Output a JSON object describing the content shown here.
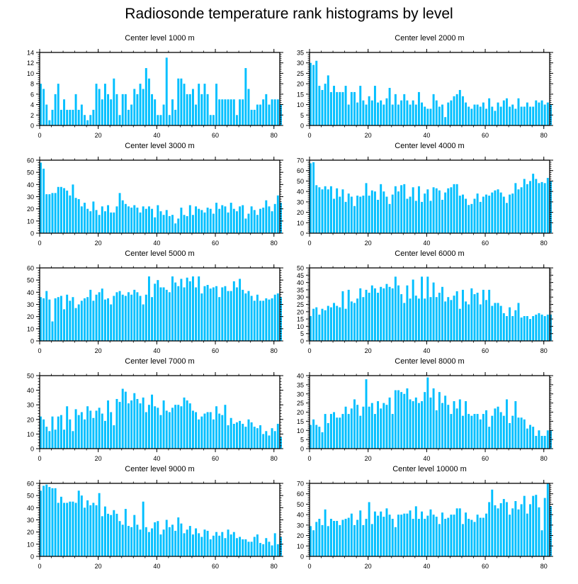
{
  "title": "Radiosonde temperature rank histograms by level",
  "colors": {
    "bar": "#00bfff",
    "axis": "#000000",
    "background": "#ffffff"
  },
  "chart_data": [
    {
      "type": "bar",
      "title": "Center level 1000 m",
      "xlabel": "",
      "ylabel": "",
      "xlim": [
        0,
        82
      ],
      "ylim": [
        0,
        14
      ],
      "xticks": [
        0,
        20,
        40,
        60,
        80
      ],
      "yticks": [
        0,
        2,
        4,
        6,
        8,
        10,
        12,
        14
      ],
      "values": [
        8,
        7,
        4,
        1,
        3,
        6,
        8,
        3,
        5,
        3,
        3,
        3,
        6,
        3,
        4,
        2,
        1,
        2,
        3,
        8,
        7,
        5,
        8,
        6,
        5,
        9,
        6,
        2,
        6,
        6,
        3,
        4,
        7,
        6,
        8,
        7,
        11,
        9,
        6,
        5,
        2,
        2,
        4,
        13,
        2,
        5,
        3,
        9,
        9,
        8,
        6,
        6,
        7,
        4,
        8,
        6,
        8,
        6,
        2,
        2,
        8,
        5,
        5,
        5,
        5,
        5,
        5,
        2,
        5,
        5,
        11,
        7,
        3,
        3,
        4,
        4,
        5,
        6,
        4,
        5,
        5,
        5,
        4
      ]
    },
    {
      "type": "bar",
      "title": "Center level 2000 m",
      "xlabel": "",
      "ylabel": "",
      "xlim": [
        0,
        82
      ],
      "ylim": [
        0,
        35
      ],
      "xticks": [
        0,
        20,
        40,
        60,
        80
      ],
      "yticks": [
        0,
        5,
        10,
        15,
        20,
        25,
        30,
        35
      ],
      "values": [
        30,
        29,
        31,
        19,
        17,
        20,
        24,
        16,
        19,
        16,
        16,
        16,
        19,
        10,
        16,
        16,
        11,
        19,
        12,
        10,
        14,
        12,
        19,
        11,
        12,
        10,
        13,
        18,
        10,
        15,
        10,
        12,
        15,
        12,
        10,
        12,
        10,
        16,
        11,
        9,
        8,
        8,
        15,
        12,
        9,
        10,
        4,
        11,
        12,
        14,
        15,
        17,
        14,
        11,
        9,
        8,
        10,
        10,
        9,
        11,
        8,
        13,
        9,
        7,
        11,
        9,
        12,
        13,
        9,
        10,
        8,
        13,
        9,
        9,
        11,
        9,
        9,
        12,
        11,
        12,
        10,
        11,
        10
      ]
    },
    {
      "type": "bar",
      "title": "Center level 3000 m",
      "xlabel": "",
      "ylabel": "",
      "xlim": [
        0,
        82
      ],
      "ylim": [
        0,
        60
      ],
      "xticks": [
        0,
        20,
        40,
        60,
        80
      ],
      "yticks": [
        0,
        10,
        20,
        30,
        40,
        50,
        60
      ],
      "values": [
        58,
        53,
        32,
        32,
        33,
        33,
        38,
        38,
        37,
        35,
        31,
        40,
        29,
        28,
        22,
        25,
        20,
        18,
        26,
        19,
        15,
        22,
        18,
        23,
        17,
        17,
        22,
        33,
        27,
        24,
        22,
        21,
        23,
        21,
        17,
        22,
        20,
        22,
        20,
        13,
        23,
        18,
        15,
        19,
        14,
        15,
        8,
        12,
        21,
        15,
        14,
        23,
        15,
        22,
        20,
        19,
        17,
        21,
        20,
        16,
        25,
        20,
        23,
        22,
        17,
        25,
        20,
        18,
        22,
        23,
        12,
        16,
        22,
        19,
        15,
        20,
        21,
        27,
        22,
        18,
        24,
        31,
        25
      ]
    },
    {
      "type": "bar",
      "title": "Center level 4000 m",
      "xlabel": "",
      "ylabel": "",
      "xlim": [
        0,
        82
      ],
      "ylim": [
        0,
        70
      ],
      "xticks": [
        0,
        20,
        40,
        60,
        80
      ],
      "yticks": [
        0,
        10,
        20,
        30,
        40,
        50,
        60,
        70
      ],
      "values": [
        67,
        68,
        46,
        44,
        42,
        45,
        42,
        45,
        33,
        43,
        35,
        42,
        30,
        38,
        35,
        26,
        36,
        35,
        36,
        48,
        36,
        41,
        40,
        32,
        47,
        40,
        35,
        28,
        37,
        45,
        40,
        46,
        47,
        33,
        35,
        44,
        31,
        45,
        30,
        38,
        42,
        31,
        44,
        43,
        41,
        32,
        39,
        43,
        44,
        47,
        47,
        36,
        37,
        33,
        27,
        28,
        33,
        38,
        30,
        35,
        37,
        36,
        39,
        41,
        42,
        39,
        35,
        29,
        37,
        38,
        48,
        42,
        44,
        52,
        47,
        50,
        57,
        52,
        48,
        49,
        48,
        53,
        50
      ]
    },
    {
      "type": "bar",
      "title": "Center level 5000 m",
      "xlabel": "",
      "ylabel": "",
      "xlim": [
        0,
        82
      ],
      "ylim": [
        0,
        60
      ],
      "xticks": [
        0,
        20,
        40,
        60,
        80
      ],
      "yticks": [
        0,
        10,
        20,
        30,
        40,
        50,
        60
      ],
      "values": [
        36,
        35,
        41,
        34,
        16,
        35,
        36,
        37,
        26,
        38,
        33,
        36,
        27,
        30,
        33,
        35,
        36,
        42,
        33,
        38,
        40,
        43,
        34,
        35,
        30,
        37,
        40,
        41,
        38,
        37,
        40,
        38,
        42,
        40,
        37,
        30,
        38,
        53,
        36,
        47,
        50,
        44,
        44,
        42,
        40,
        53,
        48,
        45,
        51,
        44,
        52,
        49,
        53,
        44,
        53,
        39,
        45,
        46,
        43,
        44,
        45,
        36,
        44,
        45,
        41,
        41,
        49,
        44,
        51,
        42,
        39,
        41,
        37,
        33,
        38,
        33,
        33,
        35,
        34,
        35,
        38,
        39,
        36
      ]
    },
    {
      "type": "bar",
      "title": "Center level 6000 m",
      "xlabel": "",
      "ylabel": "",
      "xlim": [
        0,
        82
      ],
      "ylim": [
        0,
        50
      ],
      "xticks": [
        0,
        20,
        40,
        60,
        80
      ],
      "yticks": [
        0,
        5,
        10,
        15,
        20,
        25,
        30,
        35,
        40,
        45,
        50
      ],
      "values": [
        17,
        22,
        23,
        18,
        22,
        21,
        24,
        23,
        26,
        24,
        23,
        34,
        22,
        35,
        27,
        26,
        29,
        36,
        30,
        35,
        33,
        38,
        36,
        33,
        37,
        36,
        39,
        37,
        36,
        44,
        38,
        32,
        26,
        38,
        29,
        42,
        31,
        29,
        44,
        29,
        44,
        30,
        40,
        30,
        33,
        37,
        27,
        30,
        28,
        31,
        34,
        22,
        35,
        27,
        25,
        36,
        32,
        33,
        25,
        35,
        28,
        35,
        24,
        26,
        26,
        24,
        19,
        17,
        23,
        17,
        21,
        26,
        16,
        17,
        17,
        15,
        17,
        18,
        19,
        18,
        17,
        18,
        18
      ]
    },
    {
      "type": "bar",
      "title": "Center level 7000 m",
      "xlabel": "",
      "ylabel": "",
      "xlim": [
        0,
        82
      ],
      "ylim": [
        0,
        50
      ],
      "xticks": [
        0,
        20,
        40,
        60,
        80
      ],
      "yticks": [
        0,
        10,
        20,
        30,
        40,
        50
      ],
      "values": [
        22,
        20,
        15,
        12,
        22,
        13,
        22,
        23,
        13,
        29,
        20,
        12,
        27,
        23,
        25,
        20,
        29,
        26,
        21,
        26,
        28,
        24,
        19,
        33,
        25,
        16,
        34,
        32,
        41,
        39,
        31,
        33,
        38,
        34,
        31,
        35,
        25,
        30,
        37,
        29,
        28,
        23,
        33,
        26,
        25,
        28,
        30,
        30,
        29,
        35,
        33,
        31,
        26,
        25,
        20,
        22,
        24,
        25,
        25,
        20,
        29,
        24,
        23,
        30,
        16,
        21,
        17,
        18,
        19,
        17,
        15,
        20,
        18,
        15,
        14,
        16,
        10,
        12,
        9,
        14,
        12,
        17,
        8
      ]
    },
    {
      "type": "bar",
      "title": "Center level 8000 m",
      "xlabel": "",
      "ylabel": "",
      "xlim": [
        0,
        82
      ],
      "ylim": [
        0,
        40
      ],
      "xticks": [
        0,
        20,
        40,
        60,
        80
      ],
      "yticks": [
        0,
        5,
        10,
        15,
        20,
        25,
        30,
        35,
        40
      ],
      "values": [
        13,
        16,
        13,
        12,
        9,
        19,
        14,
        19,
        20,
        17,
        17,
        19,
        23,
        19,
        22,
        27,
        24,
        18,
        23,
        38,
        23,
        25,
        19,
        26,
        22,
        25,
        24,
        28,
        19,
        32,
        32,
        31,
        30,
        33,
        27,
        26,
        28,
        25,
        26,
        31,
        39,
        28,
        33,
        21,
        31,
        25,
        29,
        24,
        19,
        26,
        22,
        27,
        18,
        26,
        19,
        18,
        19,
        19,
        16,
        19,
        21,
        12,
        18,
        22,
        23,
        20,
        18,
        27,
        14,
        18,
        26,
        17,
        17,
        16,
        11,
        13,
        12,
        7,
        10,
        7,
        7,
        10,
        10
      ]
    },
    {
      "type": "bar",
      "title": "Center level 9000 m",
      "xlabel": "",
      "ylabel": "",
      "xlim": [
        0,
        82
      ],
      "ylim": [
        0,
        60
      ],
      "xticks": [
        0,
        20,
        40,
        60,
        80
      ],
      "yticks": [
        0,
        10,
        20,
        30,
        40,
        50,
        60
      ],
      "values": [
        54,
        58,
        59,
        57,
        56,
        56,
        44,
        49,
        44,
        44,
        45,
        45,
        44,
        54,
        50,
        40,
        46,
        42,
        44,
        42,
        52,
        33,
        41,
        35,
        34,
        38,
        35,
        29,
        26,
        39,
        25,
        24,
        34,
        26,
        22,
        45,
        24,
        20,
        23,
        28,
        29,
        18,
        22,
        30,
        24,
        26,
        21,
        32,
        27,
        19,
        22,
        25,
        18,
        23,
        19,
        16,
        22,
        21,
        14,
        17,
        20,
        17,
        20,
        15,
        22,
        18,
        20,
        15,
        16,
        14,
        14,
        12,
        12,
        16,
        18,
        11,
        10,
        15,
        12,
        9,
        19,
        10,
        16
      ]
    },
    {
      "type": "bar",
      "title": "Center level 10000 m",
      "xlabel": "",
      "ylabel": "",
      "xlim": [
        0,
        82
      ],
      "ylim": [
        0,
        70
      ],
      "xticks": [
        0,
        20,
        40,
        60,
        80
      ],
      "yticks": [
        0,
        10,
        20,
        30,
        40,
        50,
        60,
        70
      ],
      "values": [
        29,
        25,
        33,
        36,
        30,
        45,
        29,
        36,
        34,
        34,
        30,
        35,
        36,
        37,
        41,
        30,
        35,
        44,
        30,
        36,
        52,
        31,
        43,
        39,
        43,
        38,
        46,
        40,
        36,
        28,
        40,
        40,
        41,
        41,
        44,
        36,
        48,
        36,
        43,
        36,
        39,
        45,
        40,
        38,
        31,
        42,
        36,
        37,
        40,
        40,
        46,
        46,
        31,
        42,
        36,
        35,
        33,
        40,
        37,
        37,
        41,
        52,
        64,
        49,
        46,
        51,
        55,
        52,
        40,
        46,
        53,
        45,
        50,
        58,
        41,
        50,
        58,
        59,
        47,
        25,
        56,
        70,
        48
      ]
    }
  ]
}
